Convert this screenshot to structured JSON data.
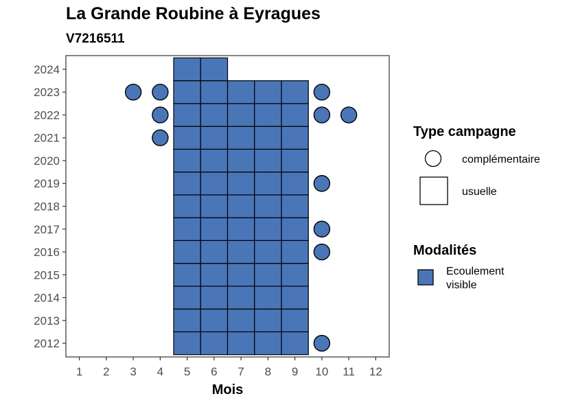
{
  "title": "La Grande Roubine à Eyragues",
  "subtitle": "V7216511",
  "chart_data": {
    "type": "heatmap",
    "xlabel": "Mois",
    "ylabel": "",
    "x_ticks": [
      1,
      2,
      3,
      4,
      5,
      6,
      7,
      8,
      9,
      10,
      11,
      12
    ],
    "y_ticks": [
      2012,
      2013,
      2014,
      2015,
      2016,
      2017,
      2018,
      2019,
      2020,
      2021,
      2022,
      2023,
      2024
    ],
    "xlim": [
      0.5,
      12.5
    ],
    "ylim": [
      2011.4,
      2024.6
    ],
    "fill_color": "#4a76b8",
    "series": [
      {
        "name": "usuelle",
        "shape": "square",
        "modalite": "Ecoulement visible",
        "points": [
          {
            "x": 5,
            "y": 2012
          },
          {
            "x": 6,
            "y": 2012
          },
          {
            "x": 7,
            "y": 2012
          },
          {
            "x": 8,
            "y": 2012
          },
          {
            "x": 9,
            "y": 2012
          },
          {
            "x": 5,
            "y": 2013
          },
          {
            "x": 6,
            "y": 2013
          },
          {
            "x": 7,
            "y": 2013
          },
          {
            "x": 8,
            "y": 2013
          },
          {
            "x": 9,
            "y": 2013
          },
          {
            "x": 5,
            "y": 2014
          },
          {
            "x": 6,
            "y": 2014
          },
          {
            "x": 7,
            "y": 2014
          },
          {
            "x": 8,
            "y": 2014
          },
          {
            "x": 9,
            "y": 2014
          },
          {
            "x": 5,
            "y": 2015
          },
          {
            "x": 6,
            "y": 2015
          },
          {
            "x": 7,
            "y": 2015
          },
          {
            "x": 8,
            "y": 2015
          },
          {
            "x": 9,
            "y": 2015
          },
          {
            "x": 5,
            "y": 2016
          },
          {
            "x": 6,
            "y": 2016
          },
          {
            "x": 7,
            "y": 2016
          },
          {
            "x": 8,
            "y": 2016
          },
          {
            "x": 9,
            "y": 2016
          },
          {
            "x": 5,
            "y": 2017
          },
          {
            "x": 6,
            "y": 2017
          },
          {
            "x": 7,
            "y": 2017
          },
          {
            "x": 8,
            "y": 2017
          },
          {
            "x": 9,
            "y": 2017
          },
          {
            "x": 5,
            "y": 2018
          },
          {
            "x": 6,
            "y": 2018
          },
          {
            "x": 7,
            "y": 2018
          },
          {
            "x": 8,
            "y": 2018
          },
          {
            "x": 9,
            "y": 2018
          },
          {
            "x": 5,
            "y": 2019
          },
          {
            "x": 6,
            "y": 2019
          },
          {
            "x": 7,
            "y": 2019
          },
          {
            "x": 8,
            "y": 2019
          },
          {
            "x": 9,
            "y": 2019
          },
          {
            "x": 5,
            "y": 2020
          },
          {
            "x": 6,
            "y": 2020
          },
          {
            "x": 7,
            "y": 2020
          },
          {
            "x": 8,
            "y": 2020
          },
          {
            "x": 9,
            "y": 2020
          },
          {
            "x": 5,
            "y": 2021
          },
          {
            "x": 6,
            "y": 2021
          },
          {
            "x": 7,
            "y": 2021
          },
          {
            "x": 8,
            "y": 2021
          },
          {
            "x": 9,
            "y": 2021
          },
          {
            "x": 5,
            "y": 2022
          },
          {
            "x": 6,
            "y": 2022
          },
          {
            "x": 7,
            "y": 2022
          },
          {
            "x": 8,
            "y": 2022
          },
          {
            "x": 9,
            "y": 2022
          },
          {
            "x": 5,
            "y": 2023
          },
          {
            "x": 6,
            "y": 2023
          },
          {
            "x": 7,
            "y": 2023
          },
          {
            "x": 8,
            "y": 2023
          },
          {
            "x": 9,
            "y": 2023
          },
          {
            "x": 5,
            "y": 2024
          },
          {
            "x": 6,
            "y": 2024
          }
        ]
      },
      {
        "name": "complémentaire",
        "shape": "circle",
        "modalite": "Ecoulement visible",
        "points": [
          {
            "x": 3,
            "y": 2023
          },
          {
            "x": 4,
            "y": 2023
          },
          {
            "x": 10,
            "y": 2023
          },
          {
            "x": 4,
            "y": 2022
          },
          {
            "x": 10,
            "y": 2022
          },
          {
            "x": 11,
            "y": 2022
          },
          {
            "x": 4,
            "y": 2021
          },
          {
            "x": 10,
            "y": 2019
          },
          {
            "x": 10,
            "y": 2017
          },
          {
            "x": 10,
            "y": 2016
          },
          {
            "x": 10,
            "y": 2012
          }
        ]
      }
    ],
    "legends": [
      {
        "title": "Type campagne",
        "items": [
          {
            "label": "complémentaire",
            "shape": "circle"
          },
          {
            "label": "usuelle",
            "shape": "square"
          }
        ]
      },
      {
        "title": "Modalités",
        "items": [
          {
            "label_lines": [
              "Ecoulement",
              "visible"
            ],
            "color": "#4a76b8"
          }
        ]
      }
    ],
    "legend_position": "right",
    "grid": false
  }
}
